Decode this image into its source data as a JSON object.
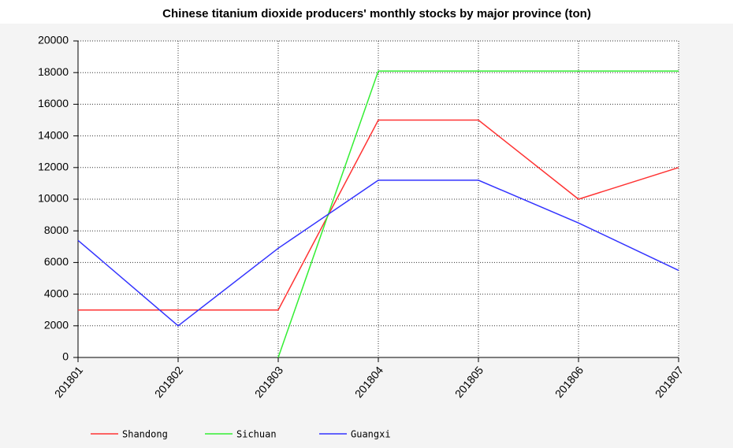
{
  "chart_data": {
    "type": "line",
    "title": "Chinese titanium dioxide producers' monthly stocks by major province (ton)",
    "categories": [
      "201801",
      "201802",
      "201803",
      "201804",
      "201805",
      "201806",
      "201807"
    ],
    "series": [
      {
        "name": "Shandong",
        "color": "#ff3333",
        "values": [
          3000,
          3000,
          3000,
          15000,
          15000,
          10000,
          12000
        ]
      },
      {
        "name": "Sichuan",
        "color": "#33ee33",
        "values": [
          null,
          null,
          0,
          18100,
          18100,
          18100,
          18100
        ]
      },
      {
        "name": "Guangxi",
        "color": "#3333ff",
        "values": [
          7400,
          2000,
          6900,
          11200,
          11200,
          8500,
          5500
        ]
      }
    ],
    "ylim": [
      0,
      20000
    ],
    "yticks": [
      0,
      2000,
      4000,
      6000,
      8000,
      10000,
      12000,
      14000,
      16000,
      18000,
      20000
    ],
    "grid": true,
    "legend": "bottom"
  }
}
